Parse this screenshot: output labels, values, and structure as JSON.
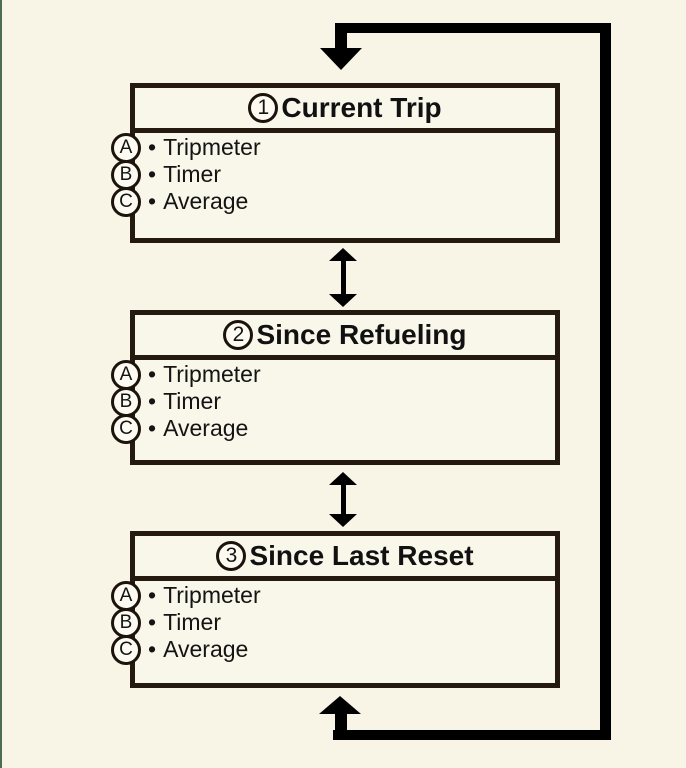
{
  "diagram": {
    "bullet": "•",
    "boxes": [
      {
        "number": "1",
        "title": "Current Trip",
        "items": [
          {
            "letter": "A",
            "label": "Tripmeter"
          },
          {
            "letter": "B",
            "label": "Timer"
          },
          {
            "letter": "C",
            "label": "Average"
          }
        ]
      },
      {
        "number": "2",
        "title": "Since Refueling",
        "items": [
          {
            "letter": "A",
            "label": "Tripmeter"
          },
          {
            "letter": "B",
            "label": "Timer"
          },
          {
            "letter": "C",
            "label": "Average"
          }
        ]
      },
      {
        "number": "3",
        "title": "Since Last Reset",
        "items": [
          {
            "letter": "A",
            "label": "Tripmeter"
          },
          {
            "letter": "B",
            "label": "Timer"
          },
          {
            "letter": "C",
            "label": "Average"
          }
        ]
      }
    ],
    "colors": {
      "background": "#f8f4e6",
      "box_border": "#241a10",
      "arrow": "#000000",
      "left_edge_line": "#4d6d4f",
      "text": "#141414",
      "circle_fill": "#fcfaf1"
    }
  }
}
